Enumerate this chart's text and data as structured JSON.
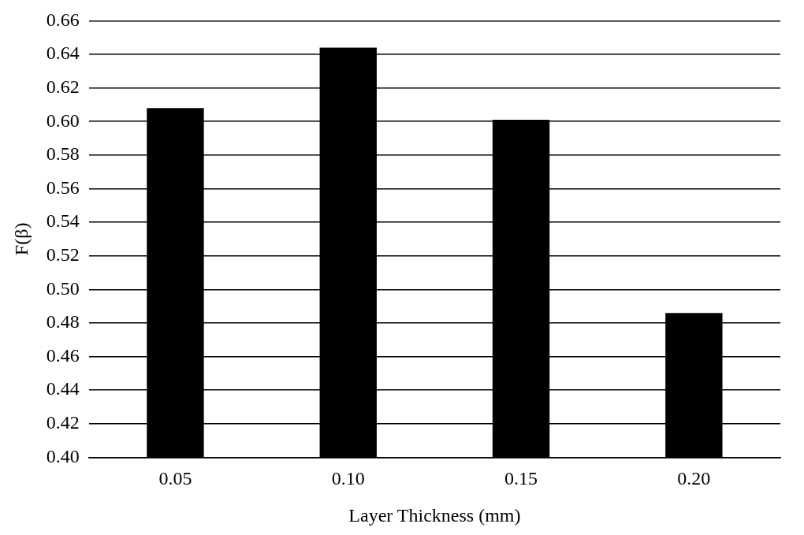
{
  "chart_data": {
    "type": "bar",
    "xlabel": "Layer Thickness (mm)",
    "ylabel": "F(β)",
    "categories": [
      "0.05",
      "0.10",
      "0.15",
      "0.20"
    ],
    "values": [
      0.608,
      0.644,
      0.601,
      0.486
    ],
    "color": "#000000",
    "ylim": [
      0.4,
      0.66
    ],
    "yticks": [
      {
        "value": 0.4,
        "label": "0.40"
      },
      {
        "value": 0.42,
        "label": "0.42"
      },
      {
        "value": 0.44,
        "label": "0.44"
      },
      {
        "value": 0.46,
        "label": "0.46"
      },
      {
        "value": 0.48,
        "label": "0.48"
      },
      {
        "value": 0.5,
        "label": "0.50"
      },
      {
        "value": 0.52,
        "label": "0.52"
      },
      {
        "value": 0.54,
        "label": "0.54"
      },
      {
        "value": 0.56,
        "label": "0.56"
      },
      {
        "value": 0.58,
        "label": "0.58"
      },
      {
        "value": 0.6,
        "label": "0.60"
      },
      {
        "value": 0.62,
        "label": "0.62"
      },
      {
        "value": 0.64,
        "label": "0.64"
      },
      {
        "value": 0.66,
        "label": "0.66"
      }
    ],
    "grid": "y",
    "legend": false
  }
}
